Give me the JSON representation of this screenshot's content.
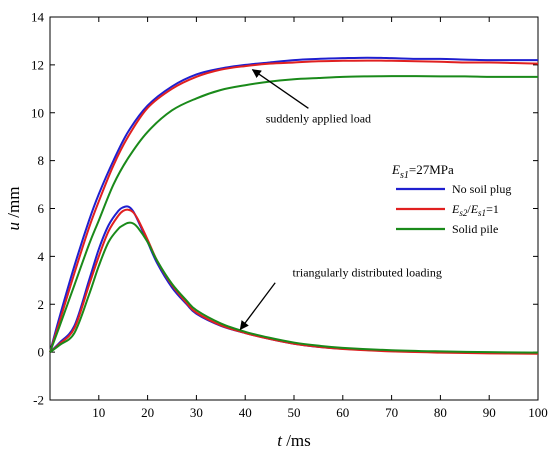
{
  "chart_data": {
    "type": "line",
    "xlabel": {
      "symbol": "t",
      "unit": " /ms"
    },
    "ylabel": {
      "symbol": "u",
      "unit": " /mm"
    },
    "xlim": [
      0,
      100
    ],
    "ylim": [
      -2,
      14
    ],
    "xticks": [
      10,
      20,
      30,
      40,
      50,
      60,
      70,
      80,
      90,
      100
    ],
    "yticks": [
      -2,
      0,
      2,
      4,
      6,
      8,
      10,
      12,
      14
    ],
    "grid": false,
    "legend": {
      "placement": "center-right",
      "title": {
        "sym": "E",
        "sub": "s1",
        "value": "=27MPa"
      },
      "entries": [
        {
          "key": "no_soil_plug",
          "label": "No soil plug"
        },
        {
          "key": "ratio_one",
          "label": "",
          "rich": {
            "e1": "E",
            "s1": "s2",
            "slash": "/",
            "e2": "E",
            "s2": "s1",
            "tail": "=1"
          }
        },
        {
          "key": "solid_pile",
          "label": "Solid pile"
        }
      ]
    },
    "series": [
      {
        "name": "No soil plug",
        "group": "suddenly applied load",
        "color": "#1f1fcf",
        "x": [
          0,
          2,
          5,
          8,
          10,
          13,
          16,
          20,
          25,
          30,
          35,
          40,
          45,
          50,
          55,
          60,
          65,
          70,
          75,
          80,
          85,
          90,
          95,
          100
        ],
        "y": [
          0,
          1.5,
          3.6,
          5.5,
          6.6,
          8.0,
          9.2,
          10.3,
          11.1,
          11.6,
          11.85,
          12.0,
          12.1,
          12.2,
          12.25,
          12.28,
          12.3,
          12.28,
          12.25,
          12.25,
          12.22,
          12.2,
          12.2,
          12.2
        ]
      },
      {
        "name": "Es2/Es1=1",
        "group": "suddenly applied load",
        "color": "#e02020",
        "x": [
          0,
          2,
          5,
          8,
          10,
          13,
          16,
          20,
          25,
          30,
          35,
          40,
          45,
          50,
          55,
          60,
          65,
          70,
          75,
          80,
          85,
          90,
          95,
          100
        ],
        "y": [
          0,
          1.3,
          3.3,
          5.2,
          6.3,
          7.8,
          9.0,
          10.2,
          11.0,
          11.5,
          11.8,
          11.95,
          12.05,
          12.1,
          12.15,
          12.17,
          12.18,
          12.17,
          12.15,
          12.13,
          12.1,
          12.1,
          12.08,
          12.05
        ]
      },
      {
        "name": "Solid pile",
        "group": "suddenly applied load",
        "color": "#1a8a1a",
        "x": [
          0,
          2,
          5,
          8,
          10,
          13,
          16,
          20,
          25,
          30,
          35,
          40,
          45,
          50,
          55,
          60,
          65,
          70,
          75,
          80,
          85,
          90,
          95,
          100
        ],
        "y": [
          0,
          1.1,
          2.8,
          4.5,
          5.5,
          7.0,
          8.1,
          9.2,
          10.1,
          10.6,
          10.95,
          11.15,
          11.3,
          11.4,
          11.45,
          11.5,
          11.52,
          11.53,
          11.53,
          11.52,
          11.52,
          11.5,
          11.5,
          11.5
        ]
      },
      {
        "name": "No soil plug",
        "group": "triangularly distributed loading",
        "color": "#1f1fcf",
        "x": [
          0,
          2,
          5,
          8,
          10,
          12,
          14,
          15,
          16,
          17,
          18,
          20,
          22,
          25,
          28,
          30,
          35,
          40,
          45,
          50,
          55,
          60,
          70,
          80,
          90,
          100
        ],
        "y": [
          0,
          0.4,
          1.1,
          3.0,
          4.3,
          5.3,
          5.9,
          6.05,
          6.08,
          5.9,
          5.5,
          4.6,
          3.7,
          2.7,
          2.0,
          1.6,
          1.1,
          0.8,
          0.55,
          0.35,
          0.22,
          0.14,
          0.04,
          0.0,
          -0.03,
          -0.05
        ]
      },
      {
        "name": "Es2/Es1=1",
        "group": "triangularly distributed loading",
        "color": "#e02020",
        "x": [
          0,
          2,
          5,
          8,
          10,
          12,
          14,
          15,
          16,
          17,
          18,
          20,
          22,
          25,
          28,
          30,
          35,
          40,
          45,
          50,
          55,
          60,
          70,
          80,
          90,
          100
        ],
        "y": [
          0,
          0.35,
          1.0,
          2.8,
          4.0,
          5.05,
          5.7,
          5.9,
          5.95,
          5.85,
          5.55,
          4.7,
          3.8,
          2.8,
          2.05,
          1.65,
          1.12,
          0.8,
          0.55,
          0.35,
          0.22,
          0.13,
          0.03,
          -0.02,
          -0.05,
          -0.07
        ]
      },
      {
        "name": "Solid pile",
        "group": "triangularly distributed loading",
        "color": "#1a8a1a",
        "x": [
          0,
          2,
          5,
          8,
          10,
          12,
          14,
          15,
          16,
          17,
          18,
          20,
          22,
          25,
          28,
          30,
          35,
          40,
          45,
          50,
          55,
          60,
          70,
          80,
          90,
          100
        ],
        "y": [
          0,
          0.3,
          0.8,
          2.4,
          3.6,
          4.6,
          5.15,
          5.3,
          5.4,
          5.38,
          5.2,
          4.6,
          3.8,
          2.85,
          2.15,
          1.75,
          1.2,
          0.85,
          0.6,
          0.4,
          0.27,
          0.18,
          0.08,
          0.03,
          0.0,
          -0.02
        ]
      }
    ],
    "annotations": [
      {
        "text": "suddenly applied load",
        "text_at": [
          55,
          9.6
        ],
        "arrow_to": [
          41.5,
          11.8
        ]
      },
      {
        "text": "triangularly distributed loading",
        "text_at": [
          65,
          3.15
        ],
        "arrow_to": [
          39,
          0.95
        ]
      }
    ]
  }
}
